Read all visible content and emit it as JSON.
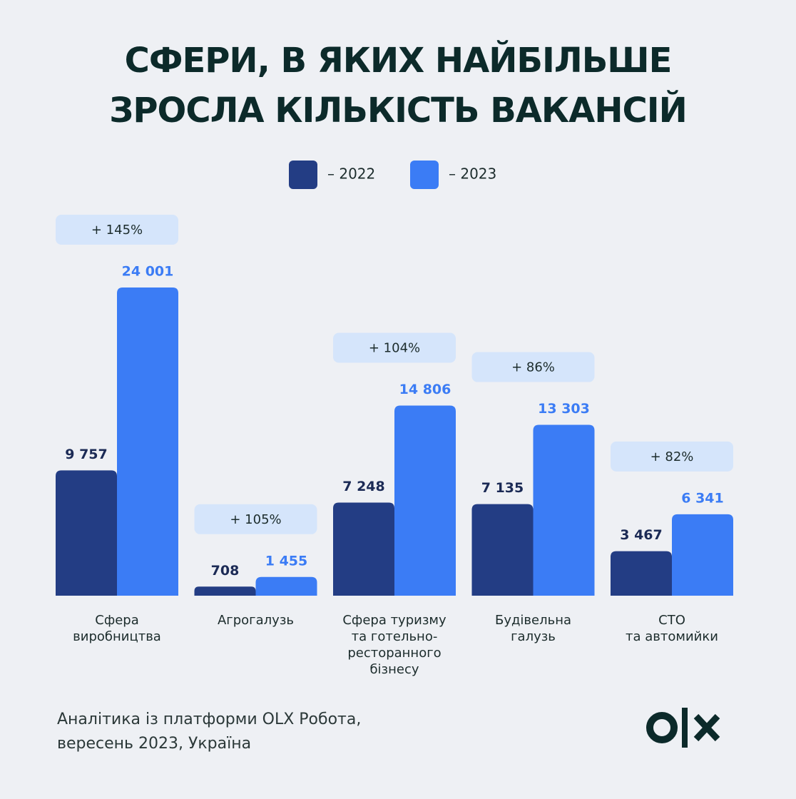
{
  "chart_data": {
    "type": "bar",
    "title": "СФЕРИ, В ЯКИХ НАЙБІЛЬШЕ\nЗРОСЛА КІЛЬКІСТЬ ВАКАНСІЙ",
    "categories": [
      "Сфера\nвиробництва",
      "Агрогалузь",
      "Сфера туризму\nта готельно-\nресторанного\nбізнесу",
      "Будівельна\nгалузь",
      "СТО\nта автомийки"
    ],
    "series": [
      {
        "name": "– 2022",
        "color": "#233d84",
        "values": [
          9757,
          708,
          7248,
          7135,
          3467
        ],
        "value_labels": [
          "9 757",
          "708",
          "7 248",
          "7 135",
          "3 467"
        ]
      },
      {
        "name": "– 2023",
        "color": "#3b7cf5",
        "values": [
          24001,
          1455,
          14806,
          13303,
          6341
        ],
        "value_labels": [
          "24 001",
          "1 455",
          "14 806",
          "13 303",
          "6 341"
        ]
      }
    ],
    "changes": [
      145,
      105,
      104,
      86,
      82
    ],
    "change_labels": [
      "+ 145%",
      "+ 105%",
      "+ 104%",
      "+ 86%",
      "+ 82%"
    ],
    "source": "Аналітика із платформи OLX Робота,\nвересень 2023, Україна"
  }
}
